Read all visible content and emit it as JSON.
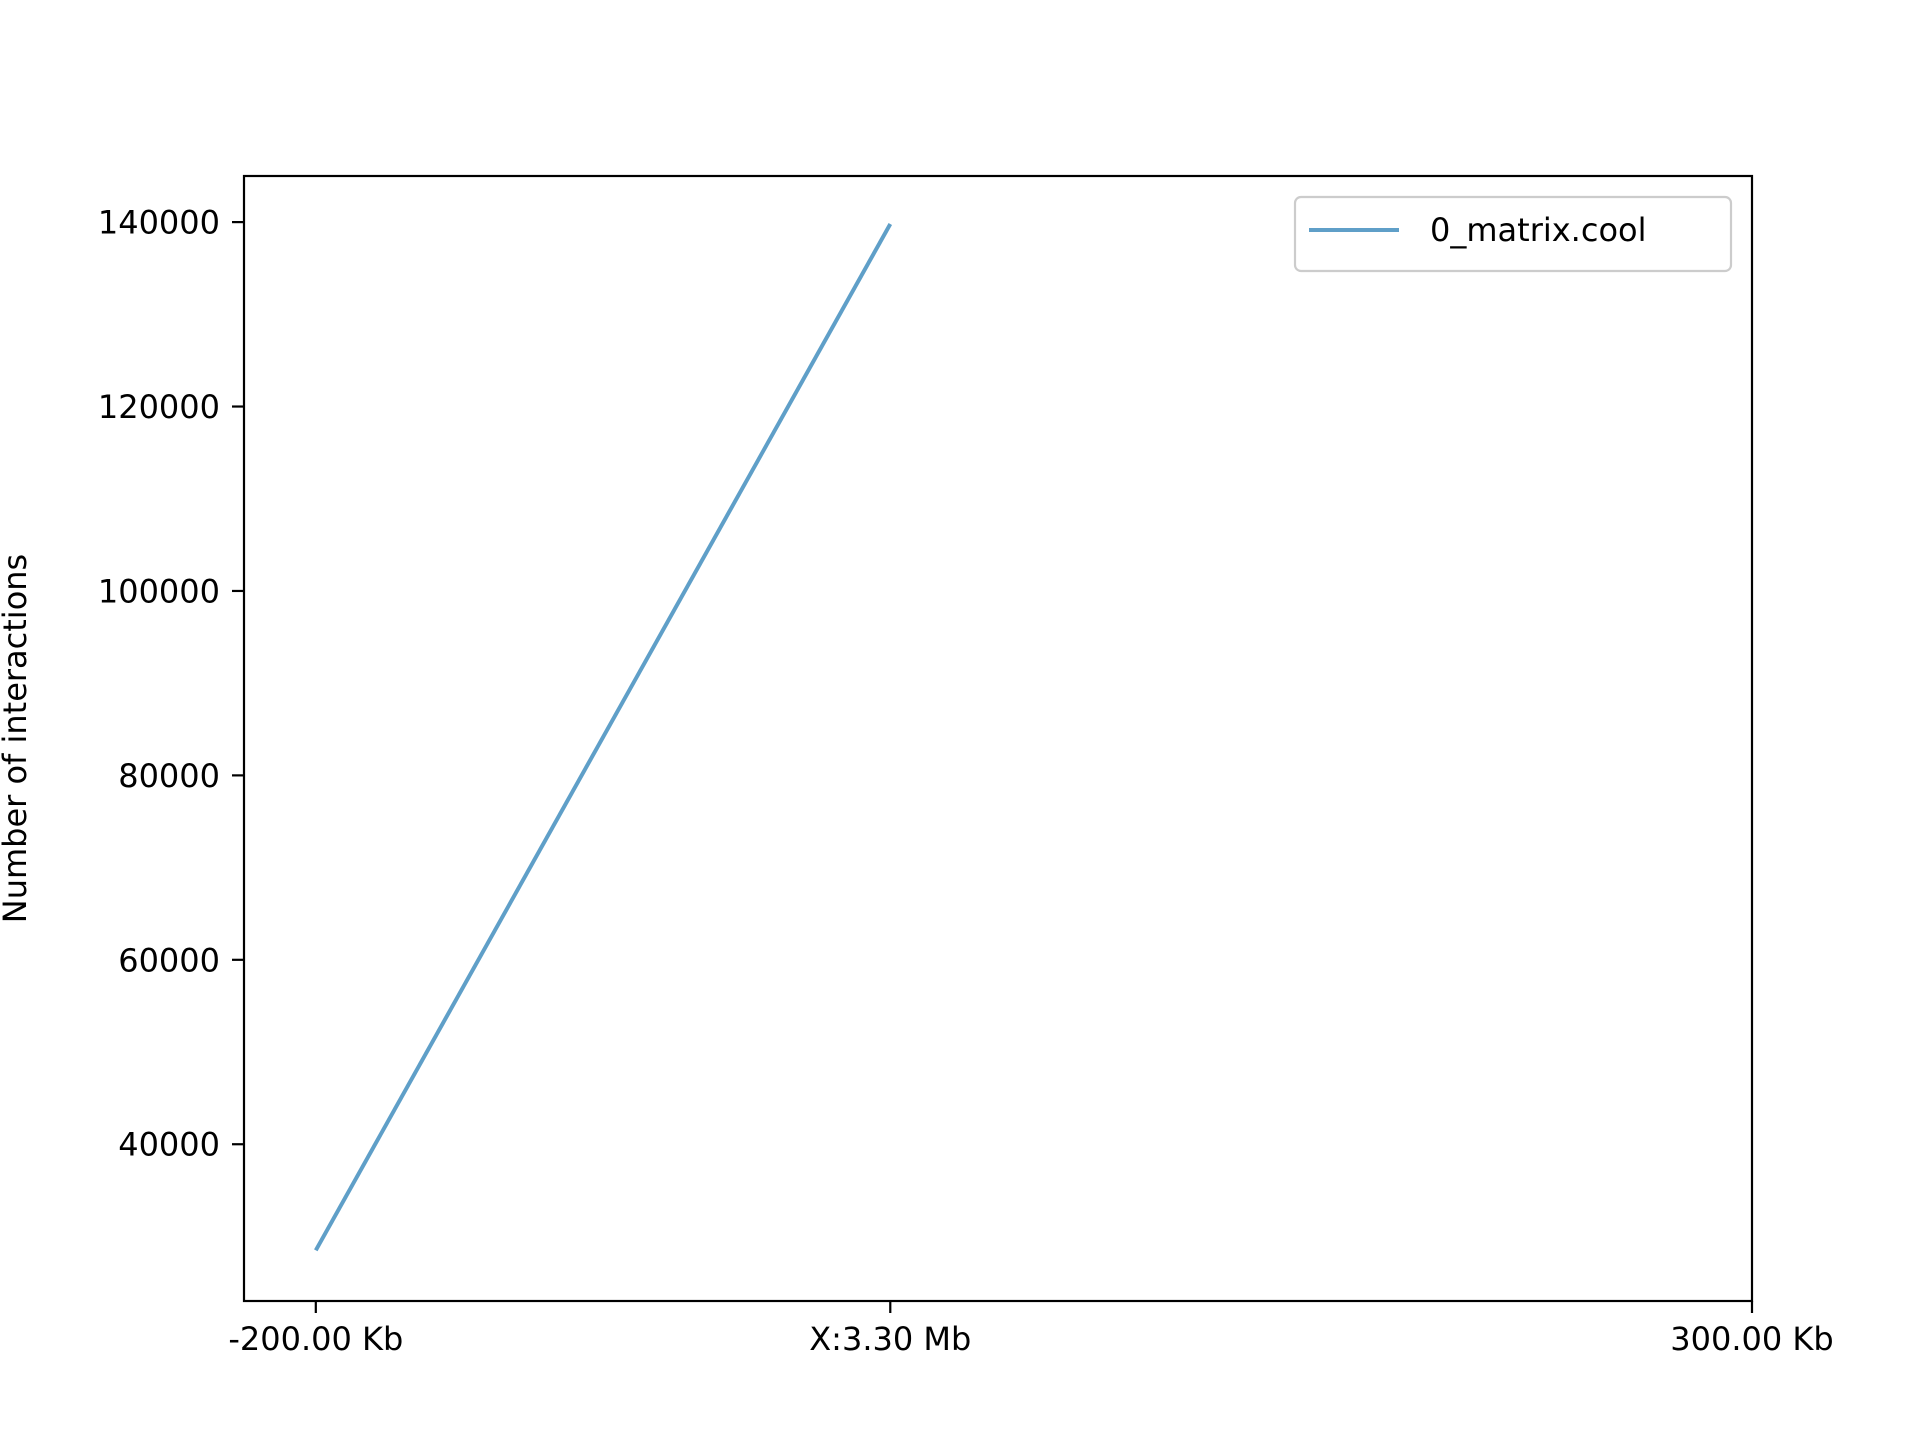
{
  "chart_data": {
    "type": "line",
    "title": "",
    "xlabel": "",
    "ylabel": "Number of interactions",
    "x_ticks": [
      "-200.00 Kb",
      "X:3.30 Mb",
      "300.00 Kb"
    ],
    "y_ticks": [
      40000,
      60000,
      80000,
      100000,
      120000,
      140000
    ],
    "xlim": [
      -225000,
      300000
    ],
    "ylim": [
      23000,
      145000
    ],
    "x_tick_values": [
      -200000,
      0,
      300000
    ],
    "series": [
      {
        "name": "0_matrix.cool",
        "color": "#5f9fc8",
        "x": [
          -200000,
          0
        ],
        "y": [
          28500,
          139800
        ]
      }
    ],
    "legend_position": "upper right",
    "grid": false
  }
}
